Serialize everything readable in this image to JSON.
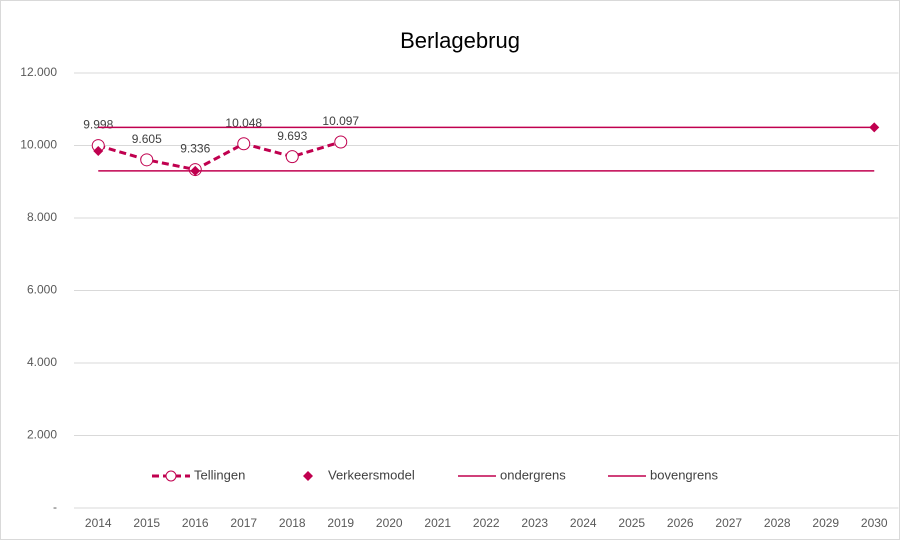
{
  "chart_data": {
    "type": "line",
    "title": "Berlagebrug",
    "categories": [
      "2014",
      "2015",
      "2016",
      "2017",
      "2018",
      "2019",
      "2020",
      "2021",
      "2022",
      "2023",
      "2024",
      "2025",
      "2026",
      "2027",
      "2028",
      "2029",
      "2030"
    ],
    "ylim": [
      0,
      12000
    ],
    "yticks": [
      {
        "value": 0,
        "label": "-"
      },
      {
        "value": 2000,
        "label": "2.000"
      },
      {
        "value": 4000,
        "label": "4.000"
      },
      {
        "value": 6000,
        "label": "6.000"
      },
      {
        "value": 8000,
        "label": "8.000"
      },
      {
        "value": 10000,
        "label": "10.000"
      },
      {
        "value": 12000,
        "label": "12.000"
      }
    ],
    "grid": true,
    "legend": "bottom",
    "series": [
      {
        "name": "Tellingen",
        "color": "#c0004f",
        "line": "dashed",
        "marker": "circle",
        "values": [
          9998,
          9605,
          9336,
          10048,
          9693,
          10097,
          null,
          null,
          null,
          null,
          null,
          null,
          null,
          null,
          null,
          null,
          null
        ],
        "value_labels": [
          "9.998",
          "9.605",
          "9.336",
          "10.048",
          "9.693",
          "10.097",
          null,
          null,
          null,
          null,
          null,
          null,
          null,
          null,
          null,
          null,
          null
        ]
      },
      {
        "name": "Verkeersmodel",
        "color": "#c0004f",
        "line": "none",
        "marker": "diamond",
        "values": [
          9850,
          null,
          9300,
          null,
          null,
          null,
          null,
          null,
          null,
          null,
          null,
          null,
          null,
          null,
          null,
          null,
          10500
        ]
      },
      {
        "name": "ondergrens",
        "color": "#c0004f",
        "line": "solid",
        "marker": "none",
        "values": [
          9300,
          9300,
          9300,
          9300,
          9300,
          9300,
          9300,
          9300,
          9300,
          9300,
          9300,
          9300,
          9300,
          9300,
          9300,
          9300,
          9300
        ]
      },
      {
        "name": "bovengrens",
        "color": "#c0004f",
        "line": "solid",
        "marker": "none",
        "values": [
          10500,
          10500,
          10500,
          10500,
          10500,
          10500,
          10500,
          10500,
          10500,
          10500,
          10500,
          10500,
          10500,
          10500,
          10500,
          10500,
          10500
        ]
      }
    ]
  }
}
